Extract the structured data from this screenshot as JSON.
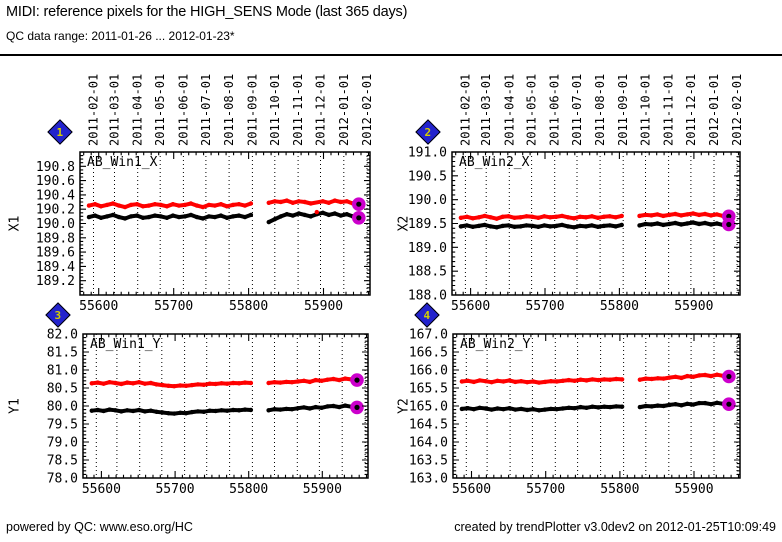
{
  "header": {
    "title": "MIDI: reference pixels for the HIGH_SENS Mode (last 365 days)",
    "subtitle": "QC data range: 2011-01-26 ... 2012-01-23*"
  },
  "footer": {
    "left": "powered by QC: www.eso.org/HC",
    "right": "created by trendPlotter v3.0dev2 on 2012-01-25T10:09:49"
  },
  "colors": {
    "red": "#ff0000",
    "black": "#000000",
    "highlight": "#cc00cc",
    "badge_blue": "#2323cd",
    "badge_number_yellow": "#d6cf00"
  },
  "date_axis": {
    "ticks": [
      {
        "mjd": 55593,
        "label": "2011-02-01"
      },
      {
        "mjd": 55621,
        "label": "2011-03-01"
      },
      {
        "mjd": 55652,
        "label": "2011-04-01"
      },
      {
        "mjd": 55682,
        "label": "2011-05-01"
      },
      {
        "mjd": 55713,
        "label": "2011-06-01"
      },
      {
        "mjd": 55743,
        "label": "2011-07-01"
      },
      {
        "mjd": 55774,
        "label": "2011-08-01"
      },
      {
        "mjd": 55805,
        "label": "2011-09-01"
      },
      {
        "mjd": 55835,
        "label": "2011-10-01"
      },
      {
        "mjd": 55866,
        "label": "2011-11-01"
      },
      {
        "mjd": 55896,
        "label": "2011-12-01"
      },
      {
        "mjd": 55927,
        "label": "2012-01-01"
      },
      {
        "mjd": 55958,
        "label": "2012-02-01"
      }
    ]
  },
  "chart_data": [
    {
      "type": "scatter",
      "badge": "1",
      "label": "AB_Win1_X",
      "ylabel": "X1",
      "ylim": [
        189.0,
        191.0
      ],
      "yticks": [
        189.2,
        189.4,
        189.6,
        189.8,
        190.0,
        190.2,
        190.4,
        190.6,
        190.8
      ],
      "yminor": 0.05,
      "xlim": [
        55575,
        55962
      ],
      "xticks": [
        55600,
        55700,
        55800,
        55900
      ],
      "xminor": 10,
      "highlight_last": true,
      "x": [
        55587,
        55595,
        55603,
        55611,
        55619,
        55627,
        55635,
        55643,
        55651,
        55659,
        55667,
        55675,
        55683,
        55691,
        55699,
        55707,
        55715,
        55723,
        55731,
        55739,
        55747,
        55755,
        55763,
        55771,
        55779,
        55787,
        55795,
        55803,
        55827,
        55835,
        55843,
        55851,
        55859,
        55867,
        55875,
        55883,
        55891,
        55899,
        55907,
        55915,
        55923,
        55931,
        55939,
        55947
      ],
      "series": [
        {
          "name": "series-red",
          "color_key": "red",
          "band_skip": [
            36
          ],
          "values": [
            190.25,
            190.27,
            190.24,
            190.26,
            190.28,
            190.25,
            190.23,
            190.26,
            190.27,
            190.24,
            190.25,
            190.27,
            190.26,
            190.24,
            190.27,
            190.25,
            190.26,
            190.28,
            190.25,
            190.23,
            190.26,
            190.25,
            190.27,
            190.24,
            190.26,
            190.27,
            190.25,
            190.28,
            190.29,
            190.31,
            190.3,
            190.32,
            190.29,
            190.31,
            190.3,
            190.28,
            190.16,
            190.31,
            190.29,
            190.32,
            190.3,
            190.31,
            190.28,
            190.27
          ]
        },
        {
          "name": "series-black",
          "color_key": "black",
          "values": [
            190.09,
            190.11,
            190.08,
            190.1,
            190.12,
            190.09,
            190.07,
            190.1,
            190.11,
            190.08,
            190.09,
            190.11,
            190.1,
            190.08,
            190.11,
            190.09,
            190.1,
            190.12,
            190.09,
            190.07,
            190.1,
            190.09,
            190.11,
            190.08,
            190.1,
            190.11,
            190.09,
            190.12,
            190.02,
            190.06,
            190.1,
            190.13,
            190.11,
            190.14,
            190.12,
            190.1,
            190.13,
            190.15,
            190.12,
            190.14,
            190.11,
            190.13,
            190.1,
            190.08
          ]
        }
      ]
    },
    {
      "type": "scatter",
      "badge": "2",
      "label": "AB_Win2_X",
      "ylabel": "X2",
      "ylim": [
        188.0,
        191.0
      ],
      "yticks": [
        188.0,
        188.5,
        189.0,
        189.5,
        190.0,
        190.5,
        191.0
      ],
      "yminor": 0.1,
      "xlim": [
        55575,
        55962
      ],
      "xticks": [
        55600,
        55700,
        55800,
        55900
      ],
      "xminor": 10,
      "highlight_last": true,
      "x": [
        55587,
        55595,
        55603,
        55611,
        55619,
        55627,
        55635,
        55643,
        55651,
        55659,
        55667,
        55675,
        55683,
        55691,
        55699,
        55707,
        55715,
        55723,
        55731,
        55739,
        55747,
        55755,
        55763,
        55771,
        55779,
        55787,
        55795,
        55803,
        55827,
        55835,
        55843,
        55851,
        55859,
        55867,
        55875,
        55883,
        55891,
        55899,
        55907,
        55915,
        55923,
        55931,
        55939,
        55947
      ],
      "series": [
        {
          "name": "series-red",
          "color_key": "red",
          "values": [
            189.62,
            189.64,
            189.61,
            189.63,
            189.66,
            189.63,
            189.6,
            189.64,
            189.65,
            189.62,
            189.63,
            189.65,
            189.64,
            189.62,
            189.65,
            189.63,
            189.64,
            189.66,
            189.63,
            189.61,
            189.64,
            189.63,
            189.65,
            189.62,
            189.64,
            189.65,
            189.63,
            189.66,
            189.66,
            189.68,
            189.67,
            189.69,
            189.66,
            189.68,
            189.7,
            189.67,
            189.69,
            189.71,
            189.68,
            189.7,
            189.67,
            189.69,
            189.66,
            189.65
          ]
        },
        {
          "name": "series-black",
          "color_key": "black",
          "values": [
            189.44,
            189.46,
            189.43,
            189.45,
            189.47,
            189.44,
            189.42,
            189.45,
            189.46,
            189.43,
            189.44,
            189.46,
            189.45,
            189.43,
            189.46,
            189.44,
            189.45,
            189.47,
            189.44,
            189.42,
            189.45,
            189.44,
            189.46,
            189.43,
            189.45,
            189.46,
            189.44,
            189.47,
            189.46,
            189.49,
            189.48,
            189.5,
            189.47,
            189.49,
            189.51,
            189.48,
            189.5,
            189.52,
            189.49,
            189.51,
            189.48,
            189.5,
            189.47,
            189.48
          ]
        }
      ]
    },
    {
      "type": "scatter",
      "badge": "3",
      "label": "AB_Win1_Y",
      "ylabel": "Y1",
      "ylim": [
        78.0,
        82.0
      ],
      "yticks": [
        78.0,
        78.5,
        79.0,
        79.5,
        80.0,
        80.5,
        81.0,
        81.5,
        82.0
      ],
      "yminor": 0.1,
      "xlim": [
        55575,
        55962
      ],
      "xticks": [
        55600,
        55700,
        55800,
        55900
      ],
      "xminor": 10,
      "highlight_last": true,
      "x": [
        55587,
        55595,
        55603,
        55611,
        55619,
        55627,
        55635,
        55643,
        55651,
        55659,
        55667,
        55675,
        55683,
        55691,
        55699,
        55707,
        55715,
        55723,
        55731,
        55739,
        55747,
        55755,
        55763,
        55771,
        55779,
        55787,
        55795,
        55803,
        55827,
        55835,
        55843,
        55851,
        55859,
        55867,
        55875,
        55883,
        55891,
        55899,
        55907,
        55915,
        55923,
        55931,
        55939,
        55947
      ],
      "series": [
        {
          "name": "series-red",
          "color_key": "red",
          "values": [
            80.63,
            80.65,
            80.62,
            80.66,
            80.64,
            80.61,
            80.65,
            80.63,
            80.66,
            80.62,
            80.64,
            80.6,
            80.58,
            80.56,
            80.55,
            80.57,
            80.56,
            80.58,
            80.6,
            80.59,
            80.62,
            80.61,
            80.63,
            80.62,
            80.64,
            80.63,
            80.65,
            80.64,
            80.64,
            80.66,
            80.65,
            80.67,
            80.66,
            80.68,
            80.7,
            80.67,
            80.72,
            80.7,
            80.73,
            80.75,
            80.72,
            80.76,
            80.74,
            80.72
          ]
        },
        {
          "name": "series-black",
          "color_key": "black",
          "values": [
            79.87,
            79.89,
            79.86,
            79.9,
            79.88,
            79.85,
            79.88,
            79.86,
            79.89,
            79.85,
            79.87,
            79.84,
            79.82,
            79.8,
            79.79,
            79.81,
            79.8,
            79.83,
            79.85,
            79.84,
            79.87,
            79.86,
            79.88,
            79.87,
            79.89,
            79.88,
            79.9,
            79.89,
            79.88,
            79.91,
            79.9,
            79.92,
            79.91,
            79.94,
            79.96,
            79.93,
            79.97,
            79.95,
            79.99,
            80.0,
            79.97,
            80.01,
            79.98,
            79.96
          ]
        }
      ]
    },
    {
      "type": "scatter",
      "badge": "4",
      "label": "AB_Win2_Y",
      "ylabel": "Y2",
      "ylim": [
        163.0,
        167.0
      ],
      "yticks": [
        163.0,
        163.5,
        164.0,
        164.5,
        165.0,
        165.5,
        166.0,
        166.5,
        167.0
      ],
      "yminor": 0.1,
      "xlim": [
        55575,
        55962
      ],
      "xticks": [
        55600,
        55700,
        55800,
        55900
      ],
      "xminor": 10,
      "highlight_last": true,
      "x": [
        55587,
        55595,
        55603,
        55611,
        55619,
        55627,
        55635,
        55643,
        55651,
        55659,
        55667,
        55675,
        55683,
        55691,
        55699,
        55707,
        55715,
        55723,
        55731,
        55739,
        55747,
        55755,
        55763,
        55771,
        55779,
        55787,
        55795,
        55803,
        55827,
        55835,
        55843,
        55851,
        55859,
        55867,
        55875,
        55883,
        55891,
        55899,
        55907,
        55915,
        55923,
        55931,
        55939,
        55947
      ],
      "series": [
        {
          "name": "series-red",
          "color_key": "red",
          "values": [
            165.68,
            165.7,
            165.67,
            165.71,
            165.69,
            165.66,
            165.7,
            165.68,
            165.71,
            165.67,
            165.69,
            165.66,
            165.68,
            165.65,
            165.67,
            165.69,
            165.68,
            165.7,
            165.72,
            165.7,
            165.73,
            165.71,
            165.74,
            165.72,
            165.74,
            165.73,
            165.75,
            165.74,
            165.73,
            165.76,
            165.75,
            165.77,
            165.76,
            165.79,
            165.81,
            165.78,
            165.83,
            165.81,
            165.85,
            165.86,
            165.83,
            165.87,
            165.84,
            165.82
          ]
        },
        {
          "name": "series-black",
          "color_key": "black",
          "values": [
            164.92,
            164.94,
            164.91,
            164.95,
            164.93,
            164.9,
            164.93,
            164.91,
            164.94,
            164.9,
            164.92,
            164.89,
            164.91,
            164.88,
            164.9,
            164.92,
            164.91,
            164.93,
            164.95,
            164.94,
            164.97,
            164.95,
            164.98,
            164.96,
            164.98,
            164.97,
            164.99,
            164.98,
            164.97,
            165.0,
            164.99,
            165.01,
            165.0,
            165.03,
            165.05,
            165.02,
            165.06,
            165.04,
            165.08,
            165.08,
            165.05,
            165.09,
            165.06,
            165.05
          ]
        }
      ]
    }
  ]
}
